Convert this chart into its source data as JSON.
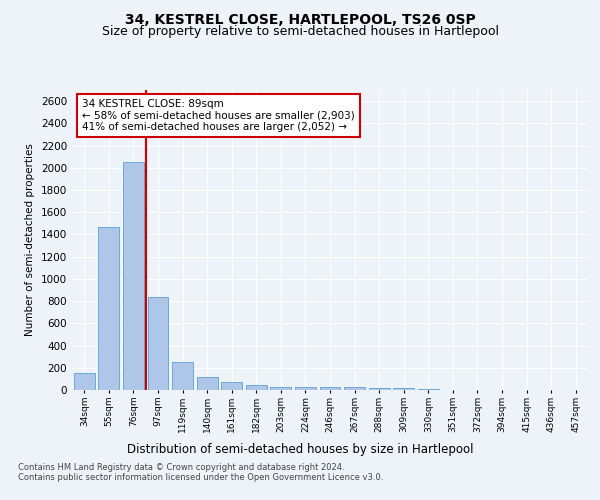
{
  "title1": "34, KESTREL CLOSE, HARTLEPOOL, TS26 0SP",
  "title2": "Size of property relative to semi-detached houses in Hartlepool",
  "xlabel": "Distribution of semi-detached houses by size in Hartlepool",
  "ylabel": "Number of semi-detached properties",
  "categories": [
    "34sqm",
    "55sqm",
    "76sqm",
    "97sqm",
    "119sqm",
    "140sqm",
    "161sqm",
    "182sqm",
    "203sqm",
    "224sqm",
    "246sqm",
    "267sqm",
    "288sqm",
    "309sqm",
    "330sqm",
    "351sqm",
    "372sqm",
    "394sqm",
    "415sqm",
    "436sqm",
    "457sqm"
  ],
  "values": [
    152,
    1470,
    2050,
    835,
    255,
    115,
    70,
    45,
    30,
    25,
    30,
    28,
    22,
    15,
    5,
    3,
    2,
    1,
    1,
    0,
    0
  ],
  "bar_color": "#aec6e8",
  "bar_edge_color": "#6aaad4",
  "vline_x": 2.5,
  "vline_color": "#cc0000",
  "annotation_text": "34 KESTREL CLOSE: 89sqm\n← 58% of semi-detached houses are smaller (2,903)\n41% of semi-detached houses are larger (2,052) →",
  "annotation_box_color": "#ffffff",
  "annotation_box_edge": "#cc0000",
  "footer_text": "Contains HM Land Registry data © Crown copyright and database right 2024.\nContains public sector information licensed under the Open Government Licence v3.0.",
  "ylim": [
    0,
    2700
  ],
  "yticks": [
    0,
    200,
    400,
    600,
    800,
    1000,
    1200,
    1400,
    1600,
    1800,
    2000,
    2200,
    2400,
    2600
  ],
  "bg_color": "#eef2f9",
  "plot_bg_color": "#eef2f9",
  "grid_color": "#ffffff",
  "title1_fontsize": 10,
  "title2_fontsize": 9
}
